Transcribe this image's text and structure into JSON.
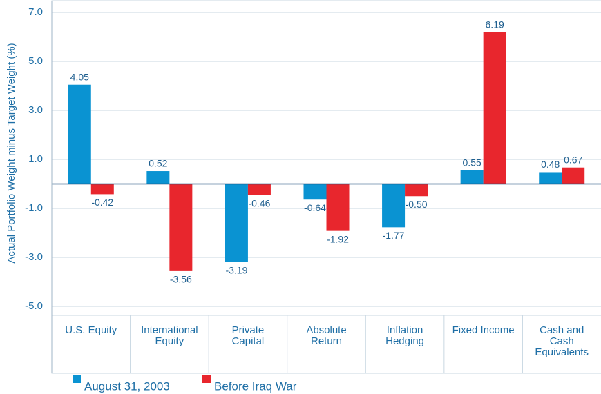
{
  "chart_data": {
    "type": "bar",
    "y_label": "Actual Portfolio Weight minus Target Weight (%)",
    "categories": [
      "U.S. Equity",
      "International\nEquity",
      "Private\nCapital",
      "Absolute\nReturn",
      "Inflation\nHedging",
      "Fixed Income",
      "Cash and\nCash\nEquivalents"
    ],
    "series": [
      {
        "name": "August 31, 2003",
        "color": "#0a93d2",
        "values": [
          4.05,
          0.52,
          -3.19,
          -0.64,
          -1.77,
          0.55,
          0.48
        ],
        "value_labels": [
          "4.05",
          "0.52",
          "-3.19",
          "-0.64",
          "-1.77",
          "0.55",
          "0.48"
        ]
      },
      {
        "name": "Before Iraq War",
        "color": "#e8262d",
        "values": [
          -0.42,
          -3.56,
          -0.46,
          -1.92,
          -0.5,
          6.19,
          0.67
        ],
        "value_labels": [
          "-0.42",
          "-3.56",
          "-0.46",
          "-1.92",
          "-0.50",
          "6.19",
          "0.67"
        ]
      }
    ],
    "ylim": [
      -5,
      7
    ],
    "yticks": [
      {
        "value": -5,
        "label": "-5.0"
      },
      {
        "value": -3,
        "label": "-3.0"
      },
      {
        "value": -1,
        "label": "-1.0"
      },
      {
        "value": 1,
        "label": "1.0"
      },
      {
        "value": 3,
        "label": "3.0"
      },
      {
        "value": 5,
        "label": "5.0"
      },
      {
        "value": 7,
        "label": "7.0"
      }
    ],
    "grid": true
  }
}
